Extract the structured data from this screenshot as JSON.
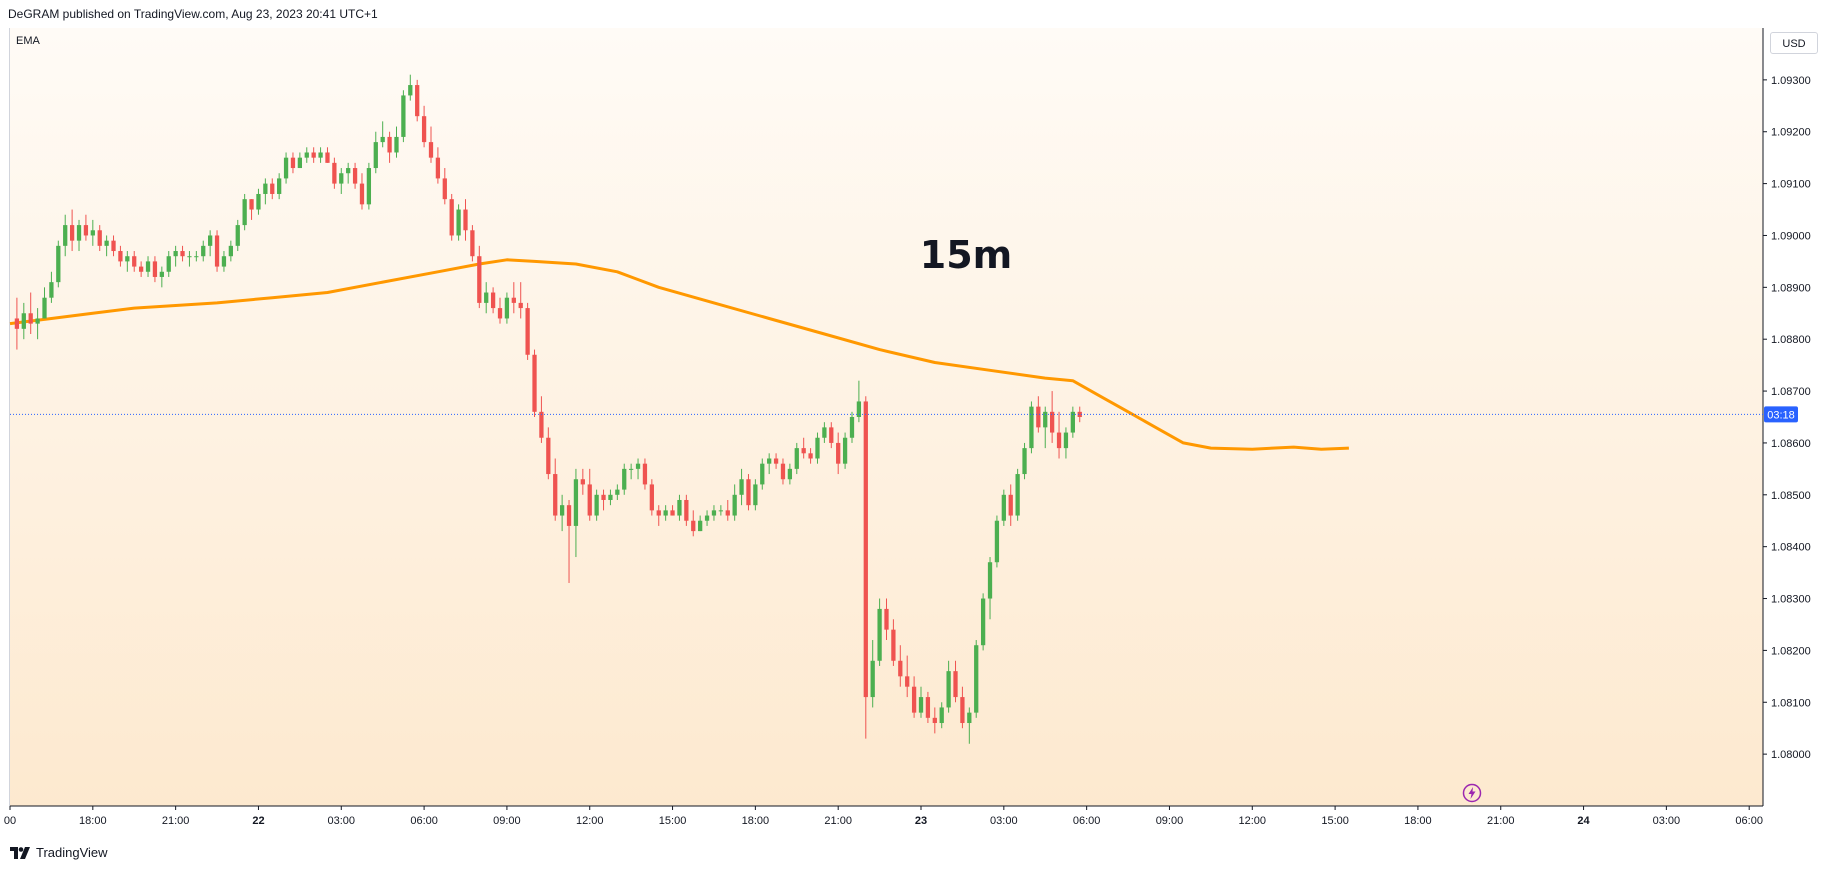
{
  "header": {
    "published": "DeGRAM published on TradingView.com, Aug 23, 2023 20:41 UTC+1"
  },
  "indicator": {
    "label": "EMA"
  },
  "currency": {
    "label": "USD"
  },
  "footer": {
    "brand": "TradingView"
  },
  "icons": {
    "logo": "tradingview-logo-icon",
    "alert": "lightning-icon"
  },
  "colors": {
    "up": "#26a69a",
    "up_body": "#4caf50",
    "down": "#ef5350",
    "ema": "#ff9800",
    "price_tag": "#2962ff",
    "background_top": "#fffbf6",
    "background_bottom": "#fde9cf"
  },
  "chart_data": {
    "type": "candlestick",
    "title": "15m",
    "timeframe": "15m",
    "y_ticks": [
      "1.08000",
      "1.08100",
      "1.08200",
      "1.08300",
      "1.08400",
      "1.08500",
      "1.08600",
      "1.08700",
      "1.08800",
      "1.08900",
      "1.09000",
      "1.09100",
      "1.09200",
      "1.09300"
    ],
    "ylim": [
      1.079,
      1.094
    ],
    "x_ticks": [
      "00",
      "18:00",
      "21:00",
      "22",
      "03:00",
      "06:00",
      "09:00",
      "12:00",
      "15:00",
      "18:00",
      "21:00",
      "23",
      "03:00",
      "06:00",
      "09:00",
      "12:00",
      "15:00",
      "18:00",
      "21:00",
      "24",
      "03:00",
      "06:00"
    ],
    "xlim_hours": [
      15,
      78.5
    ],
    "current_price": 1.08655,
    "countdown": "03:18",
    "ema_points": [
      [
        15.0,
        1.0883
      ],
      [
        16.5,
        1.0884
      ],
      [
        18.0,
        1.0885
      ],
      [
        19.5,
        1.0886
      ],
      [
        21.0,
        1.08865
      ],
      [
        22.5,
        1.0887
      ],
      [
        24.5,
        1.0888
      ],
      [
        26.5,
        1.0889
      ],
      [
        28.5,
        1.0891
      ],
      [
        30.5,
        1.0893
      ],
      [
        32.0,
        1.08945
      ],
      [
        33.0,
        1.08953
      ],
      [
        34.0,
        1.0895
      ],
      [
        35.5,
        1.08945
      ],
      [
        37.0,
        1.0893
      ],
      [
        38.5,
        1.089
      ],
      [
        40.5,
        1.0887
      ],
      [
        42.5,
        1.0884
      ],
      [
        44.5,
        1.0881
      ],
      [
        46.5,
        1.0878
      ],
      [
        48.5,
        1.08755
      ],
      [
        50.5,
        1.0874
      ],
      [
        52.5,
        1.08725
      ],
      [
        53.5,
        1.0872
      ],
      [
        54.5,
        1.0869
      ],
      [
        55.5,
        1.0866
      ],
      [
        56.5,
        1.0863
      ],
      [
        57.5,
        1.086
      ],
      [
        58.5,
        1.0859
      ],
      [
        60.0,
        1.08588
      ],
      [
        61.5,
        1.08592
      ],
      [
        62.5,
        1.08588
      ],
      [
        63.5,
        1.0859
      ]
    ],
    "candles": [
      [
        15.25,
        1.0884,
        1.0888,
        1.0878,
        1.0882
      ],
      [
        15.5,
        1.0882,
        1.0887,
        1.088,
        1.0885
      ],
      [
        15.75,
        1.0885,
        1.0889,
        1.0881,
        1.0883
      ],
      [
        16.0,
        1.0883,
        1.0886,
        1.088,
        1.0884
      ],
      [
        16.25,
        1.0884,
        1.089,
        1.0884,
        1.0888
      ],
      [
        16.5,
        1.0888,
        1.0893,
        1.0887,
        1.0891
      ],
      [
        16.75,
        1.0891,
        1.0899,
        1.089,
        1.0898
      ],
      [
        17.0,
        1.0898,
        1.0904,
        1.0896,
        1.0902
      ],
      [
        17.25,
        1.0902,
        1.0905,
        1.0897,
        1.0899
      ],
      [
        17.5,
        1.0899,
        1.0903,
        1.0897,
        1.0902
      ],
      [
        17.75,
        1.0902,
        1.0904,
        1.0899,
        1.09
      ],
      [
        18.0,
        1.09,
        1.0903,
        1.0898,
        1.0901
      ],
      [
        18.25,
        1.0901,
        1.0902,
        1.0897,
        1.0898
      ],
      [
        18.5,
        1.0898,
        1.09,
        1.0896,
        1.0899
      ],
      [
        18.75,
        1.0899,
        1.09,
        1.0896,
        1.0897
      ],
      [
        19.0,
        1.0897,
        1.0898,
        1.0894,
        1.0895
      ],
      [
        19.25,
        1.0895,
        1.0897,
        1.0893,
        1.0896
      ],
      [
        19.5,
        1.0896,
        1.0897,
        1.0893,
        1.0894
      ],
      [
        19.75,
        1.0894,
        1.0895,
        1.0892,
        1.0893
      ],
      [
        20.0,
        1.0893,
        1.0896,
        1.0892,
        1.0895
      ],
      [
        20.25,
        1.0895,
        1.0896,
        1.0891,
        1.0892
      ],
      [
        20.5,
        1.0892,
        1.0894,
        1.089,
        1.0893
      ],
      [
        20.75,
        1.0893,
        1.0897,
        1.0892,
        1.0896
      ],
      [
        21.0,
        1.0896,
        1.0898,
        1.0894,
        1.0897
      ],
      [
        21.25,
        1.0897,
        1.0898,
        1.0895,
        1.0896
      ],
      [
        21.5,
        1.0896,
        1.0897,
        1.0894,
        1.0896
      ],
      [
        21.75,
        1.0896,
        1.0897,
        1.0895,
        1.0896
      ],
      [
        22.0,
        1.0896,
        1.0899,
        1.0895,
        1.0898
      ],
      [
        22.25,
        1.0898,
        1.0901,
        1.0896,
        1.09
      ],
      [
        22.5,
        1.09,
        1.0901,
        1.0893,
        1.0894
      ],
      [
        22.75,
        1.0894,
        1.0897,
        1.0893,
        1.0896
      ],
      [
        23.0,
        1.0896,
        1.0899,
        1.0895,
        1.0898
      ],
      [
        23.25,
        1.0898,
        1.0903,
        1.0897,
        1.0902
      ],
      [
        23.5,
        1.0902,
        1.0908,
        1.0901,
        1.0907
      ],
      [
        23.75,
        1.0907,
        1.0907,
        1.0903,
        1.0905
      ],
      [
        24.0,
        1.0905,
        1.0909,
        1.0904,
        1.0908
      ],
      [
        24.25,
        1.0908,
        1.0911,
        1.0906,
        1.091
      ],
      [
        24.5,
        1.091,
        1.0911,
        1.0907,
        1.0908
      ],
      [
        24.75,
        1.0908,
        1.0912,
        1.0907,
        1.0911
      ],
      [
        25.0,
        1.0911,
        1.0916,
        1.091,
        1.0915
      ],
      [
        25.25,
        1.0915,
        1.0916,
        1.0912,
        1.0913
      ],
      [
        25.5,
        1.0913,
        1.0916,
        1.0913,
        1.0915
      ],
      [
        25.75,
        1.0915,
        1.0917,
        1.0914,
        1.0916
      ],
      [
        26.0,
        1.0916,
        1.0917,
        1.0914,
        1.0915
      ],
      [
        26.25,
        1.0915,
        1.0917,
        1.0914,
        1.0916
      ],
      [
        26.5,
        1.0916,
        1.0917,
        1.0914,
        1.0914
      ],
      [
        26.75,
        1.0914,
        1.0915,
        1.0909,
        1.091
      ],
      [
        27.0,
        1.091,
        1.0913,
        1.0908,
        1.0912
      ],
      [
        27.25,
        1.0912,
        1.0914,
        1.091,
        1.0913
      ],
      [
        27.5,
        1.0913,
        1.0914,
        1.0909,
        1.091
      ],
      [
        27.75,
        1.091,
        1.0912,
        1.0905,
        1.0906
      ],
      [
        28.0,
        1.0906,
        1.0914,
        1.0905,
        1.0913
      ],
      [
        28.25,
        1.0913,
        1.092,
        1.0912,
        1.0918
      ],
      [
        28.5,
        1.0918,
        1.0922,
        1.0917,
        1.0919
      ],
      [
        28.75,
        1.0919,
        1.092,
        1.0914,
        1.0916
      ],
      [
        29.0,
        1.0916,
        1.0921,
        1.0915,
        1.0919
      ],
      [
        29.25,
        1.0919,
        1.0928,
        1.0918,
        1.0927
      ],
      [
        29.5,
        1.0927,
        1.0931,
        1.0926,
        1.0929
      ],
      [
        29.75,
        1.0929,
        1.093,
        1.0922,
        1.0923
      ],
      [
        30.0,
        1.0923,
        1.0925,
        1.0917,
        1.0918
      ],
      [
        30.25,
        1.0918,
        1.0921,
        1.0914,
        1.0915
      ],
      [
        30.5,
        1.0915,
        1.0917,
        1.091,
        1.0911
      ],
      [
        30.75,
        1.0911,
        1.0913,
        1.0906,
        1.0907
      ],
      [
        31.0,
        1.0907,
        1.0908,
        1.0899,
        1.09
      ],
      [
        31.25,
        1.09,
        1.0906,
        1.0899,
        1.0905
      ],
      [
        31.5,
        1.0905,
        1.0907,
        1.0899,
        1.0901
      ],
      [
        31.75,
        1.0901,
        1.0902,
        1.0895,
        1.0896
      ],
      [
        32.0,
        1.0896,
        1.0898,
        1.0886,
        1.0887
      ],
      [
        32.25,
        1.0887,
        1.0891,
        1.0885,
        1.0889
      ],
      [
        32.5,
        1.0889,
        1.089,
        1.0885,
        1.0886
      ],
      [
        32.75,
        1.0886,
        1.0888,
        1.0883,
        1.0884
      ],
      [
        33.0,
        1.0884,
        1.0889,
        1.0883,
        1.0888
      ],
      [
        33.25,
        1.0888,
        1.0891,
        1.0885,
        1.0887
      ],
      [
        33.5,
        1.0887,
        1.0891,
        1.0884,
        1.0886
      ],
      [
        33.75,
        1.0886,
        1.0887,
        1.0876,
        1.0877
      ],
      [
        34.0,
        1.0877,
        1.0878,
        1.0865,
        1.0866
      ],
      [
        34.25,
        1.0866,
        1.0869,
        1.086,
        1.0861
      ],
      [
        34.5,
        1.0861,
        1.0863,
        1.0853,
        1.0854
      ],
      [
        34.75,
        1.0854,
        1.0857,
        1.0845,
        1.0846
      ],
      [
        35.0,
        1.0846,
        1.085,
        1.0843,
        1.0848
      ],
      [
        35.25,
        1.0848,
        1.0849,
        1.0833,
        1.0844
      ],
      [
        35.5,
        1.0844,
        1.0855,
        1.0838,
        1.0853
      ],
      [
        35.75,
        1.0853,
        1.0855,
        1.085,
        1.0852
      ],
      [
        36.0,
        1.0852,
        1.0855,
        1.0845,
        1.0846
      ],
      [
        36.25,
        1.0846,
        1.0851,
        1.0845,
        1.085
      ],
      [
        36.5,
        1.085,
        1.0851,
        1.0847,
        1.0849
      ],
      [
        36.75,
        1.0849,
        1.0851,
        1.0848,
        1.085
      ],
      [
        37.0,
        1.085,
        1.0852,
        1.0849,
        1.0851
      ],
      [
        37.25,
        1.0851,
        1.0856,
        1.085,
        1.0855
      ],
      [
        37.5,
        1.0855,
        1.0856,
        1.0853,
        1.0855
      ],
      [
        37.75,
        1.0855,
        1.0857,
        1.0853,
        1.0856
      ],
      [
        38.0,
        1.0856,
        1.0857,
        1.0851,
        1.0852
      ],
      [
        38.25,
        1.0852,
        1.0853,
        1.0846,
        1.0847
      ],
      [
        38.5,
        1.0847,
        1.0848,
        1.0844,
        1.0846
      ],
      [
        38.75,
        1.0846,
        1.0848,
        1.0845,
        1.0847
      ],
      [
        39.0,
        1.0847,
        1.0848,
        1.0846,
        1.0846
      ],
      [
        39.25,
        1.0846,
        1.085,
        1.0845,
        1.0849
      ],
      [
        39.5,
        1.0849,
        1.085,
        1.0844,
        1.0845
      ],
      [
        39.75,
        1.0845,
        1.0847,
        1.0842,
        1.0843
      ],
      [
        40.0,
        1.0843,
        1.0846,
        1.0843,
        1.0845
      ],
      [
        40.25,
        1.0845,
        1.0847,
        1.0844,
        1.0846
      ],
      [
        40.5,
        1.0846,
        1.0848,
        1.0845,
        1.0847
      ],
      [
        40.75,
        1.0847,
        1.0848,
        1.0846,
        1.0847
      ],
      [
        41.0,
        1.0847,
        1.0849,
        1.0845,
        1.0846
      ],
      [
        41.25,
        1.0846,
        1.0852,
        1.0845,
        1.085
      ],
      [
        41.5,
        1.085,
        1.0855,
        1.0848,
        1.0853
      ],
      [
        41.75,
        1.0853,
        1.0854,
        1.0847,
        1.0848
      ],
      [
        42.0,
        1.0848,
        1.0853,
        1.0847,
        1.0852
      ],
      [
        42.25,
        1.0852,
        1.0857,
        1.0851,
        1.0856
      ],
      [
        42.5,
        1.0856,
        1.0858,
        1.0854,
        1.0857
      ],
      [
        42.75,
        1.0857,
        1.0858,
        1.0855,
        1.0856
      ],
      [
        43.0,
        1.0856,
        1.0857,
        1.0852,
        1.0853
      ],
      [
        43.25,
        1.0853,
        1.0856,
        1.0852,
        1.0855
      ],
      [
        43.5,
        1.0855,
        1.086,
        1.0854,
        1.0859
      ],
      [
        43.75,
        1.0859,
        1.0861,
        1.0857,
        1.0858
      ],
      [
        44.0,
        1.0858,
        1.0859,
        1.0856,
        1.0857
      ],
      [
        44.25,
        1.0857,
        1.0862,
        1.0856,
        1.0861
      ],
      [
        44.5,
        1.0861,
        1.0864,
        1.086,
        1.0863
      ],
      [
        44.75,
        1.0863,
        1.0864,
        1.0859,
        1.086
      ],
      [
        45.0,
        1.086,
        1.0862,
        1.0854,
        1.0856
      ],
      [
        45.25,
        1.0856,
        1.0862,
        1.0855,
        1.0861
      ],
      [
        45.5,
        1.0861,
        1.0866,
        1.086,
        1.0865
      ],
      [
        45.75,
        1.0865,
        1.0872,
        1.0864,
        1.0868
      ],
      [
        46.0,
        1.0868,
        1.0869,
        1.0803,
        1.0811
      ],
      [
        46.25,
        1.0811,
        1.0822,
        1.0809,
        1.0818
      ],
      [
        46.5,
        1.0818,
        1.083,
        1.0817,
        1.0828
      ],
      [
        46.75,
        1.0828,
        1.083,
        1.0822,
        1.0824
      ],
      [
        47.0,
        1.0824,
        1.0826,
        1.0817,
        1.0818
      ],
      [
        47.25,
        1.0818,
        1.0821,
        1.0813,
        1.0815
      ],
      [
        47.5,
        1.0815,
        1.0819,
        1.0811,
        1.0813
      ],
      [
        47.75,
        1.0813,
        1.0815,
        1.0807,
        1.0808
      ],
      [
        48.0,
        1.0808,
        1.0813,
        1.0807,
        1.0811
      ],
      [
        48.25,
        1.0811,
        1.0812,
        1.0806,
        1.0807
      ],
      [
        48.5,
        1.0807,
        1.0809,
        1.0804,
        1.0806
      ],
      [
        48.75,
        1.0806,
        1.081,
        1.0805,
        1.0809
      ],
      [
        49.0,
        1.0809,
        1.0818,
        1.0808,
        1.0816
      ],
      [
        49.25,
        1.0816,
        1.0818,
        1.081,
        1.0811
      ],
      [
        49.5,
        1.0811,
        1.0813,
        1.0805,
        1.0806
      ],
      [
        49.75,
        1.0806,
        1.0809,
        1.0802,
        1.0808
      ],
      [
        50.0,
        1.0808,
        1.0822,
        1.0807,
        1.0821
      ],
      [
        50.25,
        1.0821,
        1.0831,
        1.082,
        1.083
      ],
      [
        50.5,
        1.083,
        1.0838,
        1.0826,
        1.0837
      ],
      [
        50.75,
        1.0837,
        1.0846,
        1.0836,
        1.0845
      ],
      [
        51.0,
        1.0845,
        1.0851,
        1.0844,
        1.085
      ],
      [
        51.25,
        1.085,
        1.0852,
        1.0844,
        1.0846
      ],
      [
        51.5,
        1.0846,
        1.0855,
        1.0845,
        1.0854
      ],
      [
        51.75,
        1.0854,
        1.086,
        1.0853,
        1.0859
      ],
      [
        52.0,
        1.0859,
        1.0868,
        1.0858,
        1.0867
      ],
      [
        52.25,
        1.0867,
        1.0869,
        1.0862,
        1.0863
      ],
      [
        52.5,
        1.0863,
        1.0867,
        1.0859,
        1.0866
      ],
      [
        52.75,
        1.0866,
        1.087,
        1.086,
        1.0862
      ],
      [
        53.0,
        1.0862,
        1.0866,
        1.0857,
        1.0859
      ],
      [
        53.25,
        1.0859,
        1.0863,
        1.0857,
        1.0862
      ],
      [
        53.5,
        1.0862,
        1.0867,
        1.0861,
        1.0866
      ],
      [
        53.75,
        1.0866,
        1.0867,
        1.0864,
        1.0865
      ]
    ]
  }
}
